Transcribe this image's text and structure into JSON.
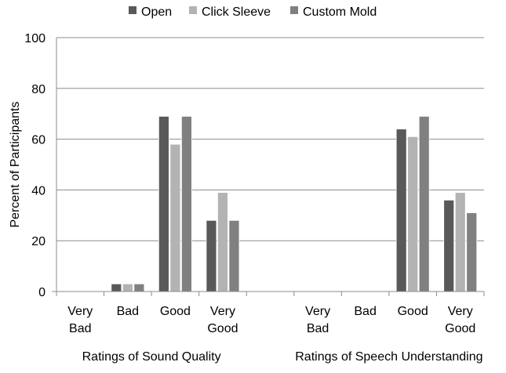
{
  "chart_data": {
    "type": "bar",
    "ylabel": "Percent of Participants",
    "ylim": [
      0,
      100
    ],
    "yticks": [
      0,
      20,
      40,
      60,
      80,
      100
    ],
    "grid": "horizontal",
    "legend_position": "top",
    "series": [
      {
        "name": "Open",
        "color": "#595959",
        "values": [
          0,
          3,
          69,
          28,
          null,
          0,
          0,
          64,
          36
        ]
      },
      {
        "name": "Click Sleeve",
        "color": "#b3b3b3",
        "values": [
          0,
          3,
          58,
          39,
          null,
          0,
          0,
          61,
          39
        ]
      },
      {
        "name": "Custom Mold",
        "color": "#808080",
        "values": [
          0,
          3,
          69,
          28,
          null,
          0,
          0,
          69,
          31
        ]
      }
    ],
    "categories": [
      [
        "Very",
        "Bad"
      ],
      [
        "Bad"
      ],
      [
        "Good"
      ],
      [
        "Very",
        "Good"
      ],
      [],
      [
        "Very",
        "Bad"
      ],
      [
        "Bad"
      ],
      [
        "Good"
      ],
      [
        "Very",
        "Good"
      ]
    ],
    "groups": [
      {
        "label": "Ratings of Sound Quality"
      },
      {
        "label": "Ratings of Speech Understanding"
      }
    ]
  }
}
